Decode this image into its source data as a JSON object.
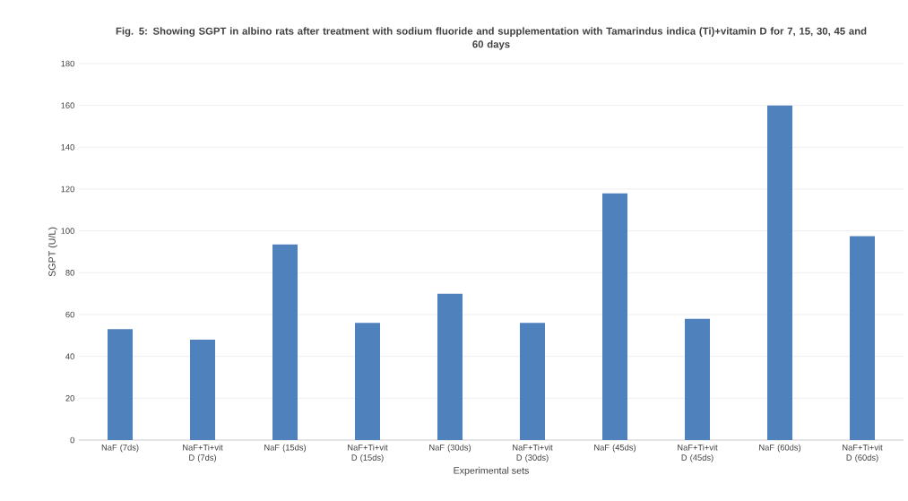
{
  "chart_data": {
    "type": "bar",
    "title": "Fig. 5: Showing SGPT in albino rats after treatment with sodium fluoride and supplementation with Tamarindus indica (Ti)+vitamin D for 7, 15, 30, 45 and 60 days",
    "xlabel": "Experimental sets",
    "ylabel": "SGPT (U/L)",
    "categories": [
      "NaF (7ds)",
      "NaF+Ti+vit D (7ds)",
      "NaF (15ds)",
      "NaF+Ti+vit D (15ds)",
      "NaF (30ds)",
      "NaF+Ti+vit D (30ds)",
      "NaF (45ds)",
      "NaF+Ti+vit D (45ds)",
      "NaF (60ds)",
      "NaF+Ti+vit D (60ds)"
    ],
    "values": [
      53,
      48,
      93.5,
      56,
      70,
      56,
      118,
      58,
      160,
      97.5
    ],
    "color": "#4f81bd",
    "ylim": [
      0,
      180
    ],
    "yticks": [
      0,
      20,
      40,
      60,
      80,
      100,
      120,
      140,
      160,
      180
    ],
    "grid": "y"
  }
}
